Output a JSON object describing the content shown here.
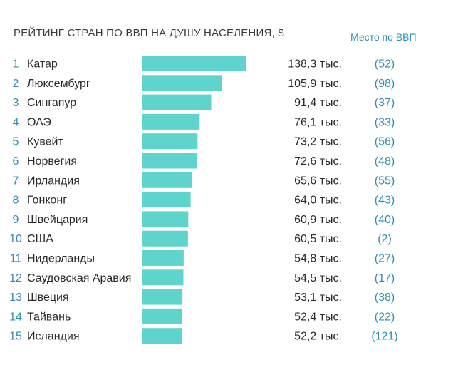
{
  "chart_data": {
    "type": "bar",
    "orientation": "horizontal",
    "title": "РЕЙТИНГ СТРАН ПО ВВП НА ДУШУ НАСЕЛЕНИЯ, $",
    "rank_header": "Место по ВВП",
    "bar_color": "#5ed4cc",
    "accent_color": "#2e8fb0",
    "rows": [
      {
        "rank": "1",
        "country": "Катар",
        "value": 138.3,
        "label": "138,3 тыс.",
        "gdp_rank": "(52)"
      },
      {
        "rank": "2",
        "country": "Люксембург",
        "value": 105.9,
        "label": "105,9 тыс.",
        "gdp_rank": "(98)"
      },
      {
        "rank": "3",
        "country": "Сингапур",
        "value": 91.4,
        "label": "91,4 тыс.",
        "gdp_rank": "(37)"
      },
      {
        "rank": "4",
        "country": "ОАЭ",
        "value": 76.1,
        "label": "76,1 тыс.",
        "gdp_rank": "(33)"
      },
      {
        "rank": "5",
        "country": "Кувейт",
        "value": 73.2,
        "label": "73,2 тыс.",
        "gdp_rank": "(56)"
      },
      {
        "rank": "6",
        "country": "Норвегия",
        "value": 72.6,
        "label": "72,6 тыс.",
        "gdp_rank": "(48)"
      },
      {
        "rank": "7",
        "country": "Ирландия",
        "value": 65.6,
        "label": "65,6 тыс.",
        "gdp_rank": "(55)"
      },
      {
        "rank": "8",
        "country": "Гонконг",
        "value": 64.0,
        "label": "64,0 тыс.",
        "gdp_rank": "(43)"
      },
      {
        "rank": "9",
        "country": "Швейцария",
        "value": 60.9,
        "label": "60,9 тыс.",
        "gdp_rank": "(40)"
      },
      {
        "rank": "10",
        "country": "США",
        "value": 60.5,
        "label": "60,5 тыс.",
        "gdp_rank": "(2)"
      },
      {
        "rank": "11",
        "country": "Нидерланды",
        "value": 54.8,
        "label": "54,8 тыс.",
        "gdp_rank": "(27)"
      },
      {
        "rank": "12",
        "country": "Саудовская Аравия",
        "value": 54.5,
        "label": "54,5 тыс.",
        "gdp_rank": "(17)"
      },
      {
        "rank": "13",
        "country": "Швеция",
        "value": 53.1,
        "label": "53,1 тыс.",
        "gdp_rank": "(38)"
      },
      {
        "rank": "14",
        "country": "Тайвань",
        "value": 52.4,
        "label": "52,4 тыс.",
        "gdp_rank": "(22)"
      },
      {
        "rank": "15",
        "country": "Исландия",
        "value": 52.2,
        "label": "52,2 тыс.",
        "gdp_rank": "(121)"
      }
    ]
  }
}
